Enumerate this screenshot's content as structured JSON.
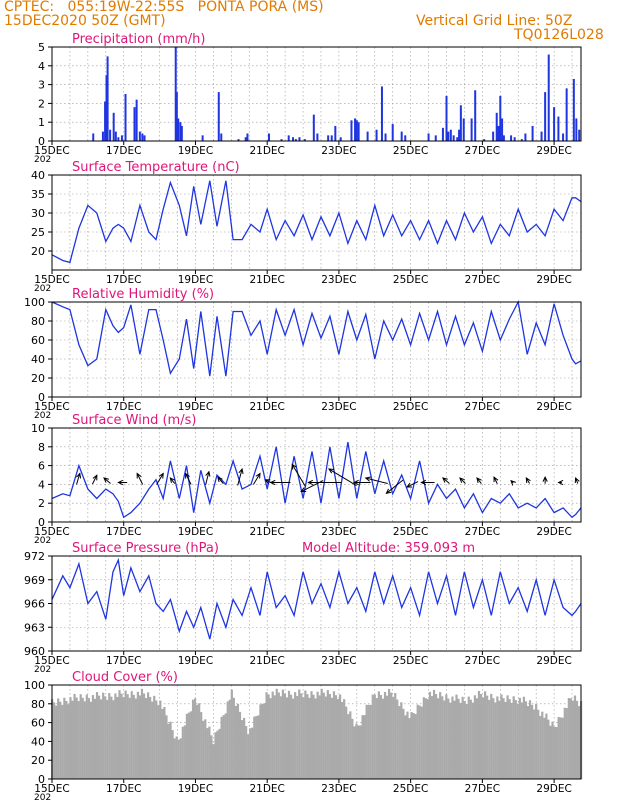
{
  "header": {
    "org_location": "CPTEC:   055:19W-22:55S   PONTA PORA (MS)",
    "date_line": "15DEC2020 50Z (GMT)",
    "grid_note": "Vertical Grid Line: 50Z",
    "code": "TQ0126L028"
  },
  "colors": {
    "header_text": "#e07b00",
    "panel_title": "#e0157a",
    "series_line": "#1f35e0",
    "bar_fill": "#1f35e0",
    "cloud_fill": "#aaaaaa",
    "arrow": "#000000"
  },
  "x_ticks": [
    "15DEC",
    "17DEC",
    "19DEC",
    "21DEC",
    "23DEC",
    "25DEC",
    "27DEC",
    "29DEC"
  ],
  "year_stub": "202",
  "chart_data": [
    {
      "id": "precip",
      "type": "bar",
      "title": "Precipitation (mm/h)",
      "ylim": [
        0,
        5
      ],
      "yticks": [
        0,
        1,
        2,
        3,
        4,
        5
      ],
      "grid": true,
      "x": [
        1.15,
        1.42,
        1.48,
        1.52,
        1.55,
        1.62,
        1.72,
        1.78,
        1.85,
        1.95,
        2.05,
        2.3,
        2.36,
        2.45,
        2.52,
        2.58,
        3.45,
        3.48,
        3.52,
        3.58,
        3.62,
        4.2,
        4.65,
        4.72,
        5.2,
        5.4,
        5.45,
        6.05,
        6.4,
        6.6,
        6.72,
        6.8,
        6.9,
        7.05,
        7.3,
        7.4,
        7.7,
        7.8,
        7.9,
        8.05,
        8.35,
        8.45,
        8.5,
        8.55,
        8.8,
        9.05,
        9.2,
        9.3,
        9.5,
        9.75,
        9.85,
        10.5,
        10.7,
        10.9,
        11.0,
        11.05,
        11.12,
        11.2,
        11.3,
        11.35,
        11.4,
        11.48,
        11.7,
        11.8,
        12.05,
        12.3,
        12.4,
        12.45,
        12.5,
        12.55,
        12.6,
        12.8,
        12.9,
        13.1,
        13.2,
        13.4,
        13.65,
        13.75,
        13.85,
        14.0,
        14.12,
        14.25,
        14.35,
        14.55,
        14.62,
        14.7
      ],
      "values": [
        0.4,
        0.5,
        2.1,
        3.5,
        4.5,
        0.6,
        1.5,
        0.5,
        0.2,
        0.3,
        2.5,
        1.8,
        2.2,
        0.5,
        0.4,
        0.3,
        5.0,
        2.6,
        1.2,
        1.0,
        0.8,
        0.3,
        2.6,
        0.4,
        0.1,
        0.2,
        0.4,
        0.4,
        0.1,
        0.3,
        0.2,
        0.1,
        0.2,
        0.1,
        1.4,
        0.4,
        0.3,
        0.3,
        0.8,
        0.2,
        1.1,
        1.2,
        1.1,
        1.0,
        0.5,
        0.6,
        2.9,
        0.4,
        0.9,
        0.5,
        0.3,
        0.4,
        0.3,
        0.7,
        2.4,
        0.5,
        0.6,
        0.3,
        0.2,
        0.6,
        1.9,
        1.2,
        1.2,
        2.7,
        0.1,
        0.5,
        1.5,
        0.8,
        2.4,
        1.2,
        0.3,
        0.3,
        0.2,
        0.1,
        0.4,
        0.8,
        0.5,
        2.6,
        4.6,
        1.8,
        1.3,
        0.4,
        2.8,
        3.3,
        1.2,
        0.6
      ]
    },
    {
      "id": "temperature",
      "type": "line",
      "title": "Surface Temperature (nC)",
      "ylim": [
        15,
        40
      ],
      "yticks": [
        20,
        25,
        30,
        35,
        40
      ],
      "grid": true,
      "x": [
        0.0,
        0.3,
        0.5,
        0.75,
        1.0,
        1.25,
        1.5,
        1.7,
        1.85,
        2.0,
        2.2,
        2.45,
        2.7,
        2.9,
        3.1,
        3.3,
        3.55,
        3.75,
        3.95,
        4.15,
        4.4,
        4.6,
        4.85,
        5.05,
        5.3,
        5.55,
        5.8,
        6.0,
        6.25,
        6.5,
        6.75,
        7.0,
        7.25,
        7.5,
        7.75,
        8.0,
        8.25,
        8.5,
        8.75,
        9.0,
        9.25,
        9.5,
        9.75,
        10.0,
        10.25,
        10.5,
        10.75,
        11.0,
        11.25,
        11.5,
        11.75,
        12.0,
        12.25,
        12.5,
        12.75,
        13.0,
        13.25,
        13.5,
        13.75,
        14.0,
        14.25,
        14.5,
        14.6,
        14.75
      ],
      "values": [
        19,
        17.5,
        17,
        26,
        32,
        30,
        22.5,
        26,
        27,
        26,
        22.5,
        32,
        25,
        23,
        31,
        38,
        32,
        24,
        37,
        27,
        38.5,
        26.5,
        38.5,
        23,
        23,
        27,
        25,
        31,
        23,
        28,
        24,
        29.5,
        23,
        29,
        24,
        30,
        22,
        28,
        23,
        32,
        24,
        29.5,
        24,
        28,
        23,
        28,
        22,
        28,
        23,
        30,
        25,
        29,
        22,
        27,
        24,
        31,
        25,
        27,
        24,
        31,
        28,
        34,
        34,
        33
      ]
    },
    {
      "id": "humidity",
      "type": "line",
      "title": "Relative Humidity (%)",
      "ylim": [
        0,
        100
      ],
      "yticks": [
        0,
        20,
        40,
        60,
        80,
        100
      ],
      "grid": true,
      "x": [
        0.0,
        0.3,
        0.5,
        0.75,
        1.0,
        1.25,
        1.5,
        1.7,
        1.85,
        2.0,
        2.2,
        2.45,
        2.7,
        2.9,
        3.1,
        3.3,
        3.55,
        3.75,
        3.95,
        4.15,
        4.4,
        4.6,
        4.85,
        5.05,
        5.3,
        5.55,
        5.8,
        6.0,
        6.25,
        6.5,
        6.75,
        7.0,
        7.25,
        7.5,
        7.75,
        8.0,
        8.25,
        8.5,
        8.75,
        9.0,
        9.25,
        9.5,
        9.75,
        10.0,
        10.25,
        10.5,
        10.75,
        11.0,
        11.25,
        11.5,
        11.75,
        12.0,
        12.25,
        12.5,
        12.75,
        13.0,
        13.25,
        13.5,
        13.75,
        14.0,
        14.25,
        14.5,
        14.6,
        14.75
      ],
      "values": [
        100,
        95,
        92,
        55,
        33,
        40,
        92,
        75,
        68,
        73,
        97,
        45,
        92,
        92,
        60,
        25,
        40,
        82,
        30,
        90,
        22,
        85,
        22,
        90,
        90,
        65,
        80,
        45,
        92,
        65,
        92,
        55,
        88,
        62,
        85,
        45,
        90,
        60,
        87,
        40,
        80,
        60,
        82,
        55,
        88,
        60,
        90,
        55,
        85,
        55,
        78,
        48,
        90,
        60,
        82,
        100,
        45,
        78,
        55,
        98,
        65,
        40,
        35,
        38
      ]
    },
    {
      "id": "wind",
      "type": "line",
      "title": "Surface Wind (m/s)",
      "ylim": [
        0,
        10
      ],
      "yticks": [
        0,
        2,
        4,
        6,
        8,
        10
      ],
      "grid": true,
      "x": [
        0.0,
        0.3,
        0.5,
        0.75,
        1.0,
        1.25,
        1.5,
        1.7,
        1.85,
        2.0,
        2.2,
        2.45,
        2.7,
        2.9,
        3.1,
        3.3,
        3.55,
        3.75,
        3.95,
        4.15,
        4.4,
        4.6,
        4.85,
        5.05,
        5.3,
        5.55,
        5.8,
        6.0,
        6.25,
        6.5,
        6.75,
        7.0,
        7.25,
        7.5,
        7.75,
        8.0,
        8.25,
        8.5,
        8.75,
        9.0,
        9.25,
        9.5,
        9.75,
        10.0,
        10.25,
        10.5,
        10.75,
        11.0,
        11.25,
        11.5,
        11.75,
        12.0,
        12.25,
        12.5,
        12.75,
        13.0,
        13.25,
        13.5,
        13.75,
        14.0,
        14.25,
        14.5,
        14.6,
        14.75
      ],
      "values": [
        2.5,
        3.0,
        2.8,
        6.0,
        3.5,
        2.5,
        3.5,
        3.0,
        2.2,
        0.5,
        1.0,
        2.0,
        3.5,
        4.5,
        2.5,
        6.5,
        2.5,
        6.0,
        1.0,
        5.5,
        2.0,
        5.0,
        4.0,
        6.5,
        3.5,
        4.0,
        7.0,
        3.5,
        8.0,
        2.0,
        7.0,
        2.5,
        7.5,
        2.0,
        8.0,
        2.5,
        8.5,
        2.5,
        7.5,
        3.0,
        6.5,
        3.0,
        5.0,
        2.5,
        6.5,
        2.0,
        4.0,
        2.5,
        3.5,
        1.5,
        3.0,
        1.0,
        2.5,
        2.0,
        3.0,
        1.5,
        2.0,
        1.5,
        2.5,
        1.0,
        1.5,
        0.5,
        0.8,
        1.5
      ],
      "arrow_times": [
        0.7,
        1.15,
        1.6,
        2.05,
        2.5,
        2.95,
        3.4,
        3.85,
        4.3,
        4.75,
        5.2,
        5.65,
        6.1,
        6.55,
        7.0,
        7.45,
        7.9,
        8.35,
        8.8,
        9.25,
        9.7,
        10.15,
        10.6,
        11.05,
        11.5,
        11.95,
        12.4,
        12.85,
        13.3,
        13.75,
        14.2,
        14.65
      ],
      "arrow_u": [
        0.3,
        0.4,
        -0.6,
        -0.8,
        -0.5,
        0.6,
        -0.4,
        -0.5,
        0.3,
        -0.5,
        0.4,
        0.6,
        -0.6,
        -1.8,
        -1.2,
        -2.0,
        -3.0,
        -2.5,
        -1.5,
        -2.0,
        -1.5,
        -1.0,
        -1.2,
        -0.6,
        -0.5,
        -0.4,
        -0.3,
        -0.2,
        -0.3,
        0.0,
        -0.3,
        -0.2
      ],
      "arrow_v": [
        1.0,
        0.8,
        0.5,
        0.0,
        1.0,
        1.0,
        0.5,
        1.0,
        1.2,
        0.6,
        1.5,
        1.0,
        0.3,
        0.0,
        2.0,
        -1.0,
        0.0,
        1.5,
        0.0,
        0.5,
        -1.2,
        -0.5,
        0.0,
        0.5,
        0.5,
        0.5,
        0.6,
        0.2,
        0.5,
        0.6,
        0.0,
        0.5
      ]
    },
    {
      "id": "pressure",
      "type": "line",
      "title": "Surface Pressure (hPa)",
      "ylim": [
        960,
        972
      ],
      "yticks": [
        960,
        963,
        966,
        969,
        972
      ],
      "grid": true,
      "x": [
        0.0,
        0.3,
        0.5,
        0.75,
        1.0,
        1.25,
        1.5,
        1.7,
        1.85,
        2.0,
        2.2,
        2.45,
        2.7,
        2.9,
        3.1,
        3.3,
        3.55,
        3.75,
        3.95,
        4.15,
        4.4,
        4.6,
        4.85,
        5.05,
        5.3,
        5.55,
        5.8,
        6.0,
        6.25,
        6.5,
        6.75,
        7.0,
        7.25,
        7.5,
        7.75,
        8.0,
        8.25,
        8.5,
        8.75,
        9.0,
        9.25,
        9.5,
        9.75,
        10.0,
        10.25,
        10.5,
        10.75,
        11.0,
        11.25,
        11.5,
        11.75,
        12.0,
        12.25,
        12.5,
        12.75,
        13.0,
        13.25,
        13.5,
        13.75,
        14.0,
        14.25,
        14.5,
        14.6,
        14.75
      ],
      "values": [
        966.5,
        969.5,
        968,
        971,
        966,
        967.5,
        964,
        970,
        971.5,
        967,
        970.5,
        967.5,
        969.5,
        966,
        965,
        966.5,
        962.5,
        965,
        963,
        965.5,
        961.5,
        966,
        963,
        966.5,
        964.5,
        968,
        964.5,
        970,
        965.5,
        967,
        964.5,
        970,
        966,
        968.5,
        965.5,
        970,
        966,
        968,
        965,
        970,
        966,
        969.5,
        965.5,
        968,
        964.5,
        970,
        966,
        969.5,
        964.5,
        970,
        965.5,
        969,
        964.5,
        970,
        966,
        968,
        965,
        969,
        964.5,
        969,
        965.5,
        964.5,
        965,
        966
      ]
    },
    {
      "id": "cloud",
      "type": "area",
      "title": "Cloud Cover (%)",
      "ylim": [
        0,
        100
      ],
      "yticks": [
        0,
        20,
        40,
        60,
        80,
        100
      ],
      "grid": true,
      "x": [
        0.0,
        0.5,
        1.0,
        1.5,
        2.0,
        2.5,
        3.0,
        3.5,
        4.0,
        4.5,
        5.0,
        5.5,
        6.0,
        6.5,
        7.0,
        7.5,
        8.0,
        8.5,
        9.0,
        9.5,
        10.0,
        10.5,
        11.0,
        11.5,
        12.0,
        12.5,
        13.0,
        13.5,
        14.0,
        14.5,
        14.75
      ],
      "values": [
        85,
        90,
        92,
        93,
        95,
        96,
        88,
        45,
        92,
        45,
        96,
        55,
        96,
        96,
        95,
        96,
        95,
        60,
        95,
        96,
        70,
        96,
        92,
        88,
        95,
        90,
        90,
        82,
        60,
        92,
        85
      ]
    }
  ],
  "panel_titles_extra": {
    "model_altitude": "Model Altitude: 359.093 m"
  }
}
